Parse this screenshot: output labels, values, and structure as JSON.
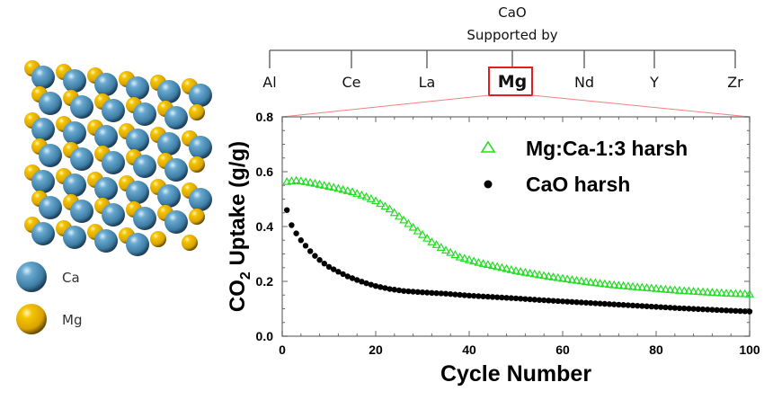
{
  "header": {
    "title_line1": "CaO",
    "title_line2": "Supported by",
    "supports": [
      "Al",
      "Ce",
      "La",
      "Mg",
      "Nd",
      "Y",
      "Zr"
    ],
    "highlighted": "Mg",
    "highlight_color": "#e02020"
  },
  "structure_legend": [
    {
      "label": "Ca",
      "color": "#4a8fb8"
    },
    {
      "label": "Mg",
      "color": "#e8b400"
    }
  ],
  "chart_data": {
    "type": "scatter",
    "title": "",
    "xlabel": "Cycle Number",
    "ylabel": "CO2 Uptake (g/g)",
    "ylabel_main": "CO",
    "ylabel_sub": "2",
    "ylabel_rest": " Uptake (g/g)",
    "xlim": [
      0,
      100
    ],
    "ylim": [
      0,
      0.8
    ],
    "xticks": [
      "0",
      "20",
      "40",
      "60",
      "80",
      "100"
    ],
    "yticks": [
      "0.0",
      "0.2",
      "0.4",
      "0.6",
      "0.8"
    ],
    "grid": false,
    "legend_position": "top-right",
    "series": [
      {
        "name": "Mg:Ca-1:3 harsh",
        "marker": "triangle-open",
        "color": "#22dd22",
        "x_start": 1,
        "x_step": 1,
        "count": 100,
        "keypoints": [
          [
            1,
            0.565
          ],
          [
            3,
            0.57
          ],
          [
            6,
            0.562
          ],
          [
            10,
            0.548
          ],
          [
            15,
            0.528
          ],
          [
            18,
            0.51
          ],
          [
            20,
            0.495
          ],
          [
            23,
            0.465
          ],
          [
            26,
            0.425
          ],
          [
            29,
            0.385
          ],
          [
            32,
            0.345
          ],
          [
            35,
            0.315
          ],
          [
            38,
            0.29
          ],
          [
            42,
            0.27
          ],
          [
            46,
            0.255
          ],
          [
            50,
            0.24
          ],
          [
            55,
            0.225
          ],
          [
            60,
            0.212
          ],
          [
            65,
            0.2
          ],
          [
            70,
            0.19
          ],
          [
            75,
            0.182
          ],
          [
            80,
            0.175
          ],
          [
            85,
            0.168
          ],
          [
            90,
            0.163
          ],
          [
            95,
            0.158
          ],
          [
            100,
            0.155
          ]
        ]
      },
      {
        "name": "CaO harsh",
        "marker": "circle-filled",
        "color": "#000000",
        "x_start": 1,
        "x_step": 1,
        "count": 100,
        "keypoints": [
          [
            1,
            0.46
          ],
          [
            2,
            0.405
          ],
          [
            3,
            0.375
          ],
          [
            4,
            0.35
          ],
          [
            5,
            0.33
          ],
          [
            6,
            0.31
          ],
          [
            7,
            0.293
          ],
          [
            8,
            0.278
          ],
          [
            9,
            0.265
          ],
          [
            10,
            0.253
          ],
          [
            12,
            0.235
          ],
          [
            14,
            0.218
          ],
          [
            16,
            0.205
          ],
          [
            18,
            0.193
          ],
          [
            20,
            0.183
          ],
          [
            23,
            0.172
          ],
          [
            26,
            0.165
          ],
          [
            30,
            0.16
          ],
          [
            35,
            0.155
          ],
          [
            40,
            0.148
          ],
          [
            45,
            0.143
          ],
          [
            50,
            0.138
          ],
          [
            55,
            0.132
          ],
          [
            60,
            0.127
          ],
          [
            65,
            0.122
          ],
          [
            70,
            0.117
          ],
          [
            75,
            0.112
          ],
          [
            80,
            0.107
          ],
          [
            85,
            0.102
          ],
          [
            90,
            0.098
          ],
          [
            95,
            0.094
          ],
          [
            100,
            0.09
          ]
        ]
      }
    ]
  }
}
